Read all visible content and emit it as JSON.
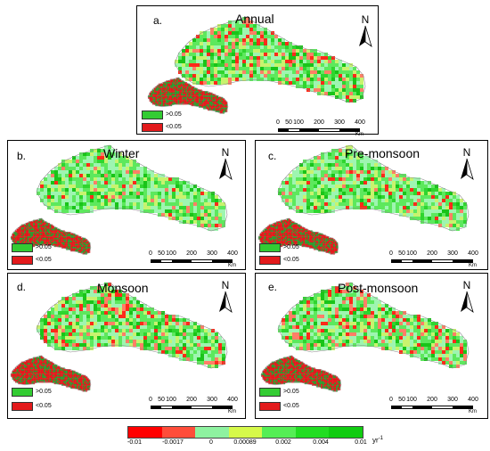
{
  "panels": [
    {
      "id": "annual",
      "letter": "a.",
      "title": "Annual"
    },
    {
      "id": "winter",
      "letter": "b.",
      "title": "Winter"
    },
    {
      "id": "premonsoon",
      "letter": "c.",
      "title": "Pre-monsoon"
    },
    {
      "id": "monsoon",
      "letter": "d.",
      "title": "Monsoon"
    },
    {
      "id": "postmonsoon",
      "letter": "e.",
      "title": "Post-monsoon"
    }
  ],
  "north_label": "N",
  "significance_legend": [
    {
      "label": ">0.05",
      "color": "#33cc33"
    },
    {
      "label": "<0.05",
      "color": "#e31a1c"
    }
  ],
  "scale_bar": {
    "ticks": [
      "0",
      "50",
      "100",
      "200",
      "300",
      "400"
    ],
    "unit": "Km"
  },
  "colorbar": {
    "colors": [
      "#ff0000",
      "#ff4d3a",
      "#8ef2a0",
      "#d6f94a",
      "#55ee55",
      "#22dd22",
      "#11cc11"
    ],
    "labels": [
      "-0.01",
      "-0.0017",
      "0",
      "0.00089",
      "0.002",
      "0.004",
      "0.01"
    ],
    "unit": "yr",
    "unit_exponent": "-1"
  }
}
